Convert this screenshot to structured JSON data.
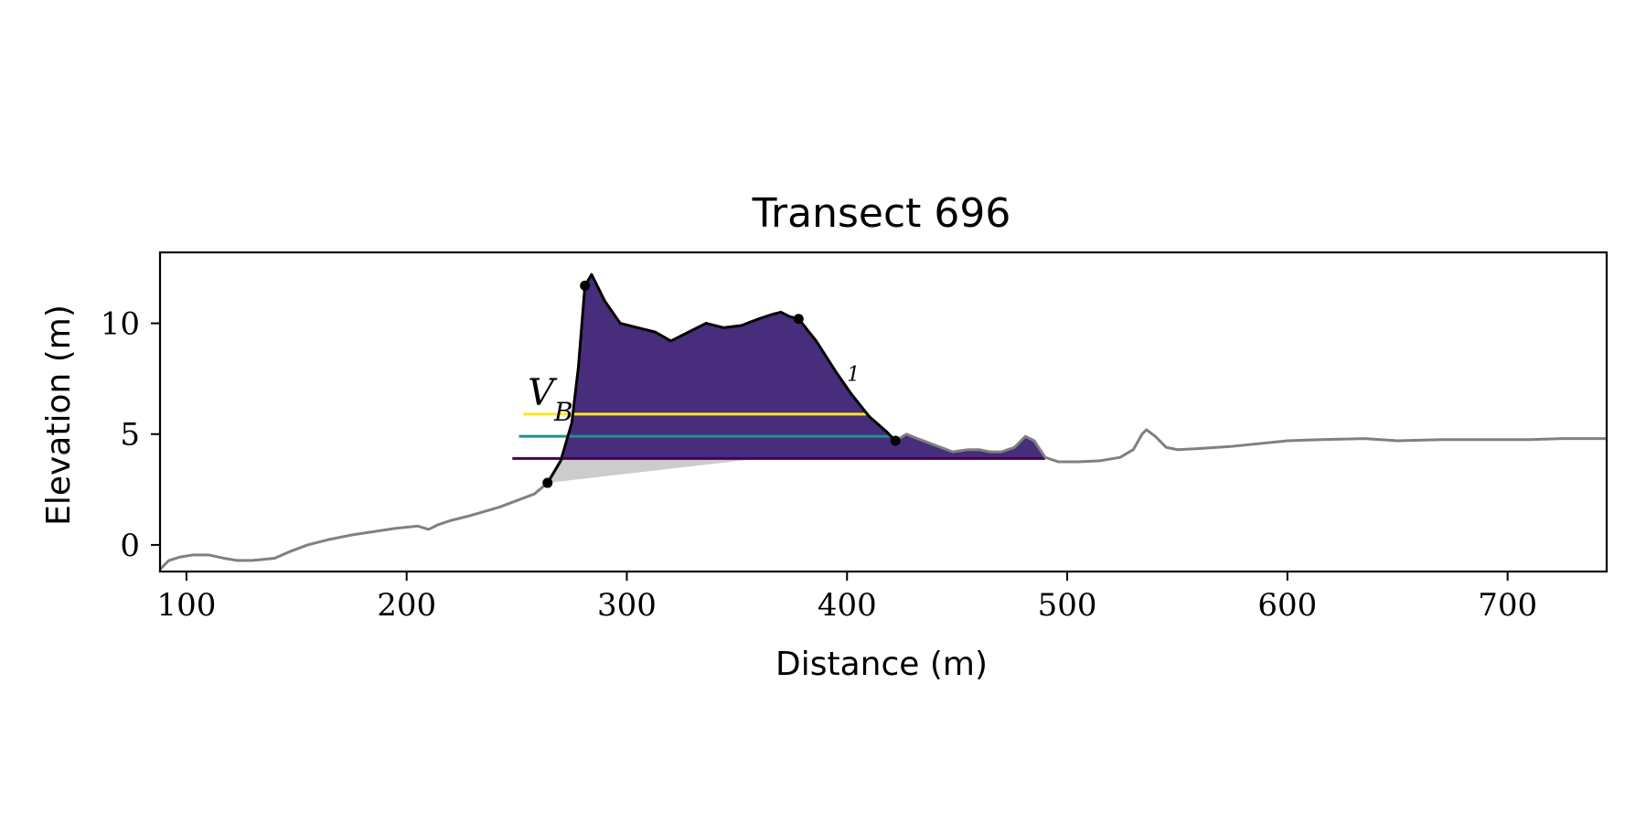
{
  "chart_data": {
    "type": "area",
    "title": "Transect 696",
    "xlabel": "Distance (m)",
    "ylabel": "Elevation (m)",
    "xlim": [
      88,
      745
    ],
    "ylim": [
      -1.2,
      13.2
    ],
    "xticks": [
      100,
      200,
      300,
      400,
      500,
      600,
      700
    ],
    "yticks": [
      0,
      5,
      10
    ],
    "grid": false,
    "legend": "none",
    "annotations": [
      {
        "text": "V",
        "subscript": "B",
        "x": 255,
        "y": 6.3
      },
      {
        "text": "1",
        "x": 400,
        "y": 7.4
      }
    ],
    "profile": {
      "color": "#808080",
      "x": [
        88,
        92,
        97,
        103,
        110,
        117,
        123,
        130,
        140,
        147,
        155,
        165,
        175,
        185,
        195,
        205,
        210,
        214,
        220,
        228,
        235,
        242,
        250,
        258,
        264,
        270,
        275,
        278,
        281,
        284,
        290,
        297,
        305,
        313,
        320,
        328,
        336,
        344,
        352,
        360,
        366,
        370,
        374,
        378,
        386,
        395,
        402,
        410,
        418,
        422,
        427,
        432,
        440,
        448,
        455,
        460,
        465,
        470,
        476,
        481,
        485,
        490,
        496,
        505,
        515,
        524,
        530,
        534,
        536,
        540,
        545,
        550,
        560,
        575,
        590,
        600,
        615,
        635,
        650,
        670,
        690,
        710,
        725,
        745
      ],
      "y": [
        -1.1,
        -0.7,
        -0.55,
        -0.45,
        -0.45,
        -0.6,
        -0.7,
        -0.7,
        -0.6,
        -0.3,
        0.0,
        0.25,
        0.45,
        0.6,
        0.75,
        0.85,
        0.7,
        0.9,
        1.1,
        1.3,
        1.5,
        1.7,
        2.0,
        2.3,
        2.8,
        3.8,
        5.5,
        8.0,
        11.7,
        12.2,
        11.0,
        10.0,
        9.8,
        9.6,
        9.2,
        9.6,
        10.0,
        9.8,
        9.9,
        10.2,
        10.4,
        10.5,
        10.3,
        10.2,
        9.2,
        7.8,
        6.8,
        5.8,
        5.1,
        4.7,
        5.0,
        4.8,
        4.5,
        4.2,
        4.3,
        4.3,
        4.2,
        4.2,
        4.4,
        4.9,
        4.7,
        3.95,
        3.75,
        3.75,
        3.8,
        3.95,
        4.3,
        5.0,
        5.2,
        4.9,
        4.4,
        4.3,
        4.35,
        4.45,
        4.6,
        4.7,
        4.75,
        4.8,
        4.7,
        4.75,
        4.75,
        4.75,
        4.8,
        4.8
      ]
    },
    "dune_outline": {
      "color": "#000000",
      "x_start": 264,
      "x_end": 422
    },
    "key_points": {
      "x": [
        264,
        281,
        378,
        422
      ],
      "y": [
        2.8,
        11.7,
        10.2,
        4.7
      ]
    },
    "base_wedge": {
      "color": "#cccccc",
      "x": [
        264,
        360
      ],
      "y": [
        2.8,
        3.9
      ]
    },
    "layers": [
      {
        "level": 5.9,
        "color": "#fde725",
        "x_start": 253,
        "x_end": 410
      },
      {
        "level": 4.9,
        "color": "#21a387",
        "x_start": 251,
        "x_end": 420
      },
      {
        "level": 3.9,
        "color": "#472d7b",
        "x_start": 248,
        "x_end": 490
      }
    ],
    "layer_line_colors": [
      "#fde725",
      "#21908d",
      "#440154"
    ]
  }
}
